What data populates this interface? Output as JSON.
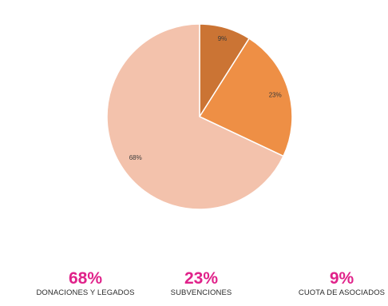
{
  "chart_data": {
    "type": "pie",
    "slices": [
      {
        "name": "CUOTA DE ASOCIADOS",
        "value": 9,
        "label": "9%",
        "color": "#CB7434"
      },
      {
        "name": "SUBVENCIONES",
        "value": 23,
        "label": "23%",
        "color": "#EE8F45"
      },
      {
        "name": "DONACIONES Y LEGADOS",
        "value": 68,
        "label": "68%",
        "color": "#F3C2AC"
      }
    ],
    "start_angle": "12 o'clock, clockwise"
  },
  "summary": [
    {
      "pct": "68%",
      "caption": "DONACIONES Y LEGADOS"
    },
    {
      "pct": "23%",
      "caption": "SUBVENCIONES"
    },
    {
      "pct": "9%",
      "caption": "CUOTA DE ASOCIADOS"
    }
  ],
  "colors": {
    "accent_pink": "#E0228A",
    "caption_text": "#2A2A2A"
  }
}
